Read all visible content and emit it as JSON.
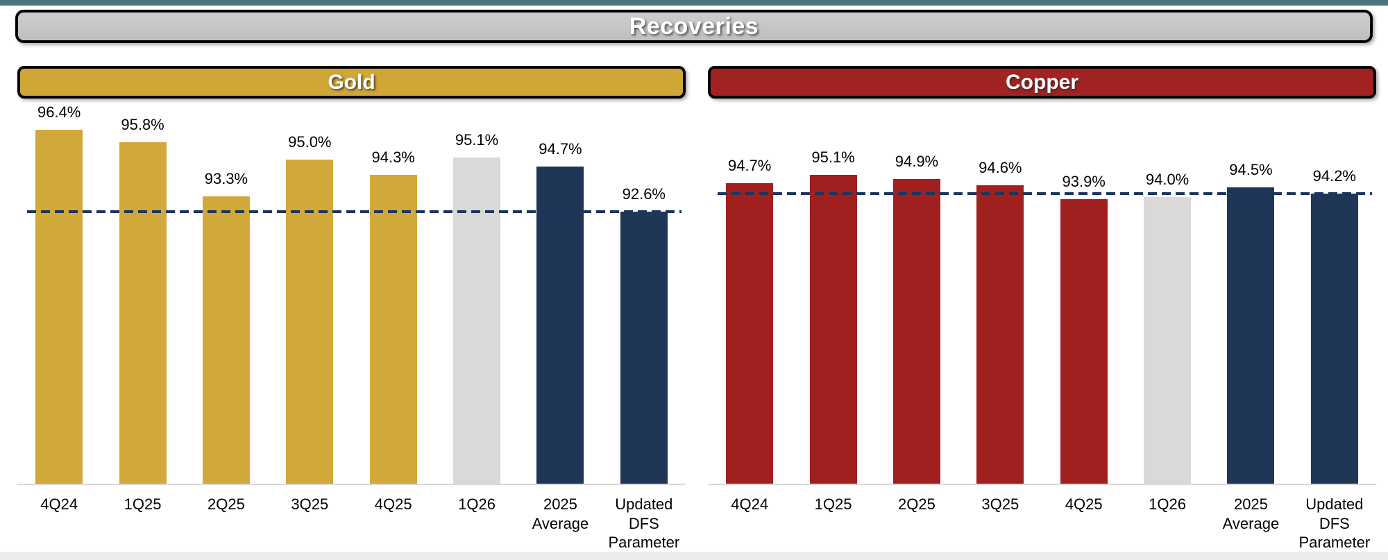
{
  "page": {
    "title": "Recoveries"
  },
  "colors": {
    "gold": "#D1A83A",
    "red": "#A02020",
    "gray": "#D9D9D9",
    "navy": "#1F3656",
    "dash": "#1B355E",
    "axis": "#D9D9D9",
    "top_strip": "#4E7380",
    "bottom_strip": "#EDEDED",
    "title_banner_bg": "#BFBFBF",
    "panel_gold_bg": "#D0A637",
    "panel_copper_bg": "#A32222"
  },
  "chart_data": [
    {
      "type": "bar",
      "title": "Gold",
      "banner_color": "panel_gold_bg",
      "categories": [
        "4Q24",
        "1Q25",
        "2Q25",
        "3Q25",
        "4Q25",
        "1Q26",
        "2025 Average",
        "Updated DFS Parameter"
      ],
      "values": [
        96.4,
        95.8,
        93.3,
        95.0,
        94.3,
        95.1,
        94.7,
        92.6
      ],
      "value_labels": [
        "96.4%",
        "95.8%",
        "93.3%",
        "95.0%",
        "94.3%",
        "95.1%",
        "94.7%",
        "92.6%"
      ],
      "bar_colors": [
        "gold",
        "gold",
        "gold",
        "gold",
        "gold",
        "gray",
        "navy",
        "navy"
      ],
      "reference_value": 92.6,
      "reference_style": "dashed",
      "ylim": [
        80,
        97.9
      ],
      "xlabel": "",
      "ylabel": "",
      "grid": false,
      "legend": false
    },
    {
      "type": "bar",
      "title": "Copper",
      "banner_color": "panel_copper_bg",
      "categories": [
        "4Q24",
        "1Q25",
        "2Q25",
        "3Q25",
        "4Q25",
        "1Q26",
        "2025 Average",
        "Updated DFS Parameter"
      ],
      "values": [
        94.7,
        95.1,
        94.9,
        94.6,
        93.9,
        94.0,
        94.5,
        94.2
      ],
      "value_labels": [
        "94.7%",
        "95.1%",
        "94.9%",
        "94.6%",
        "93.9%",
        "94.0%",
        "94.5%",
        "94.2%"
      ],
      "bar_colors": [
        "red",
        "red",
        "red",
        "red",
        "red",
        "gray",
        "navy",
        "navy"
      ],
      "reference_value": 94.2,
      "reference_style": "dashed",
      "ylim": [
        80,
        98.9
      ],
      "xlabel": "",
      "ylabel": "",
      "grid": false,
      "legend": false
    }
  ]
}
